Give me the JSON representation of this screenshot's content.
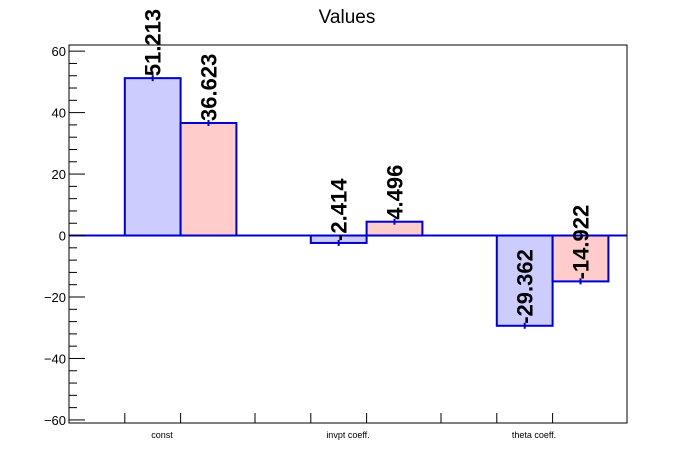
{
  "chart_data": {
    "type": "bar",
    "title": "Values",
    "categories": [
      "const",
      "invpt coeff.",
      "theta coeff."
    ],
    "series": [
      {
        "values": [
          51.213,
          -2.414,
          -29.362
        ],
        "fill": "#ccccff",
        "stroke": "#0000cc"
      },
      {
        "values": [
          36.623,
          4.496,
          -14.922
        ],
        "fill": "#ffcccc",
        "stroke": "#0000cc"
      }
    ],
    "data_labels": [
      [
        "51.213",
        "-2.414",
        "-29.362"
      ],
      [
        "36.623",
        "4.496",
        "-14.922"
      ]
    ],
    "yticks": [
      "60",
      "40",
      "20",
      "0",
      "−20",
      "−40",
      "−60"
    ],
    "ylim": [
      -61,
      62
    ],
    "xlabel": "",
    "ylabel": "",
    "grid": false,
    "legend": "none"
  }
}
